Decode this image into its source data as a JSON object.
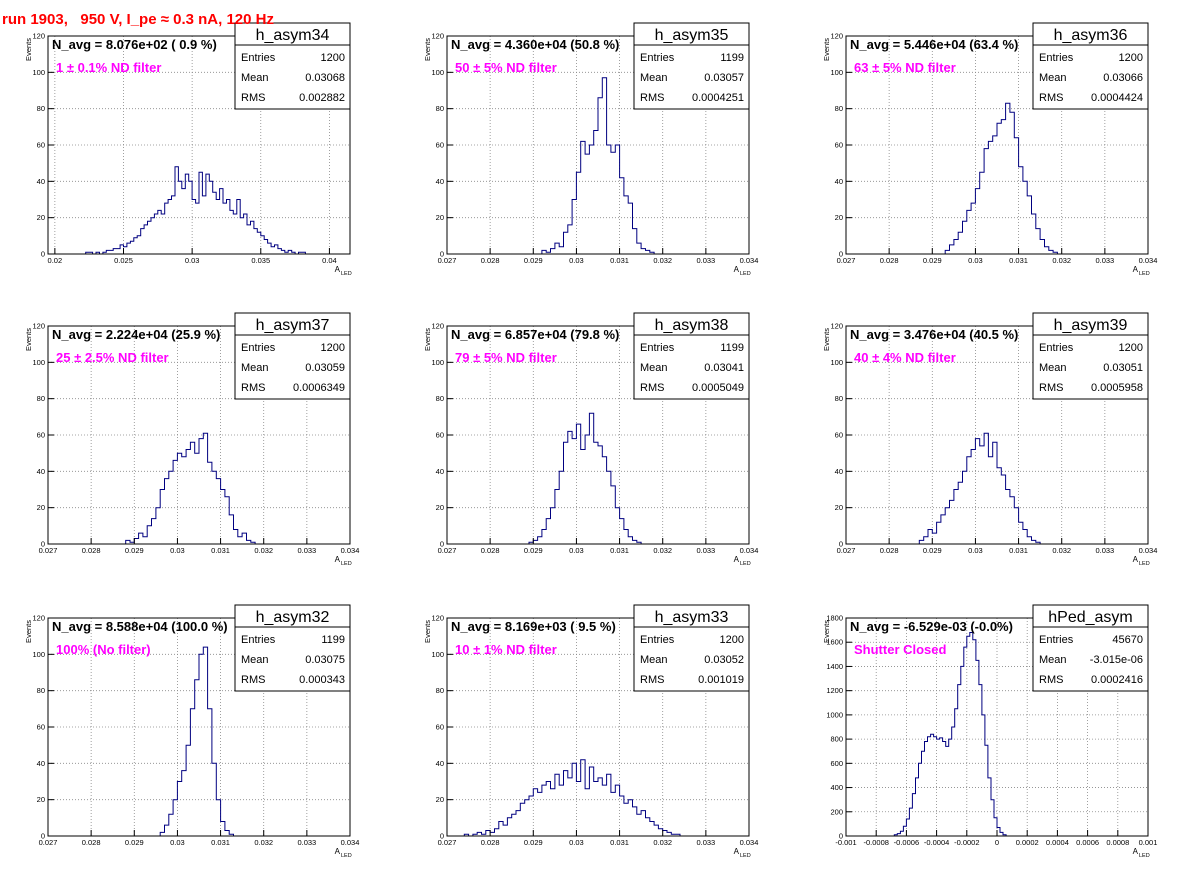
{
  "page_title": "run 1903,   950 V, I_pe ≈ 0.3 nA, 120 Hz",
  "colors": {
    "histogram": "#000080",
    "annotation": "#ff00ff",
    "title": "#ff0000",
    "grid": "#888888"
  },
  "stats_labels": {
    "entries": "Entries",
    "mean": "Mean",
    "rms": "RMS"
  },
  "chart_data": [
    {
      "type": "histogram",
      "name": "h_asym34",
      "navg_text": "N_avg = 8.076e+02 ( 0.9 %)",
      "annotation": "1 ± 0.1% ND filter",
      "stats": {
        "entries": "1200",
        "mean": "0.03068",
        "rms": "0.002882"
      },
      "ylabel": "Events",
      "xlabel": "A",
      "xlabel_sub": "LED",
      "xlim": [
        0.0195,
        0.0415
      ],
      "ylim": [
        0,
        120
      ],
      "xticks": [
        "0.02",
        "0.025",
        "0.03",
        "0.035",
        "0.04"
      ],
      "xtick_values": [
        0.02,
        0.025,
        0.03,
        0.035,
        0.04
      ],
      "yticks": [
        "0",
        "20",
        "40",
        "60",
        "80",
        "100",
        "120"
      ],
      "grid": true,
      "bin_start": 0.022,
      "bin_width": 0.00025,
      "counts": [
        0,
        1,
        1,
        0,
        1,
        0,
        1,
        2,
        2,
        3,
        3,
        5,
        4,
        6,
        7,
        9,
        10,
        14,
        16,
        18,
        20,
        22,
        24,
        22,
        28,
        30,
        32,
        48,
        40,
        36,
        44,
        40,
        30,
        28,
        45,
        32,
        44,
        40,
        34,
        30,
        36,
        28,
        30,
        24,
        22,
        30,
        20,
        22,
        16,
        18,
        14,
        12,
        10,
        8,
        6,
        4,
        5,
        3,
        2,
        1,
        2,
        1,
        0,
        1,
        1,
        0,
        0,
        0,
        0,
        0,
        0,
        0
      ]
    },
    {
      "type": "histogram",
      "name": "h_asym35",
      "navg_text": "N_avg = 4.360e+04 (50.8 %)",
      "annotation": "50 ± 5% ND filter",
      "stats": {
        "entries": "1199",
        "mean": "0.03057",
        "rms": "0.0004251"
      },
      "ylabel": "Events",
      "xlabel": "A",
      "xlabel_sub": "LED",
      "xlim": [
        0.027,
        0.034
      ],
      "ylim": [
        0,
        120
      ],
      "xticks": [
        "0.027",
        "0.028",
        "0.029",
        "0.03",
        "0.031",
        "0.032",
        "0.033",
        "0.034"
      ],
      "xtick_values": [
        0.027,
        0.028,
        0.029,
        0.03,
        0.031,
        0.032,
        0.033,
        0.034
      ],
      "yticks": [
        "0",
        "20",
        "40",
        "60",
        "80",
        "100",
        "120"
      ],
      "grid": true,
      "bin_start": 0.0292,
      "bin_width": 0.0001,
      "counts": [
        2,
        1,
        3,
        6,
        4,
        12,
        16,
        30,
        45,
        62,
        55,
        60,
        68,
        86,
        97,
        60,
        56,
        60,
        42,
        32,
        28,
        14,
        6,
        3,
        2,
        1,
        0
      ]
    },
    {
      "type": "histogram",
      "name": "h_asym36",
      "navg_text": "N_avg = 5.446e+04 (63.4 %)",
      "annotation": "63 ± 5% ND filter",
      "stats": {
        "entries": "1200",
        "mean": "0.03066",
        "rms": "0.0004424"
      },
      "ylabel": "Events",
      "xlabel": "A",
      "xlabel_sub": "LED",
      "xlim": [
        0.027,
        0.034
      ],
      "ylim": [
        0,
        120
      ],
      "xticks": [
        "0.027",
        "0.028",
        "0.029",
        "0.03",
        "0.031",
        "0.032",
        "0.033",
        "0.034"
      ],
      "xtick_values": [
        0.027,
        0.028,
        0.029,
        0.03,
        0.031,
        0.032,
        0.033,
        0.034
      ],
      "yticks": [
        "0",
        "20",
        "40",
        "60",
        "80",
        "100",
        "120"
      ],
      "grid": true,
      "bin_start": 0.0293,
      "bin_width": 0.0001,
      "counts": [
        2,
        5,
        8,
        12,
        18,
        24,
        28,
        36,
        45,
        58,
        62,
        65,
        72,
        74,
        83,
        78,
        64,
        48,
        40,
        32,
        22,
        14,
        8,
        4,
        2,
        1
      ]
    },
    {
      "type": "histogram",
      "name": "h_asym37",
      "navg_text": "N_avg = 2.224e+04 (25.9 %)",
      "annotation": "25 ± 2.5% ND filter",
      "stats": {
        "entries": "1200",
        "mean": "0.03059",
        "rms": "0.0006349"
      },
      "ylabel": "Events",
      "xlabel": "A",
      "xlabel_sub": "LED",
      "xlim": [
        0.027,
        0.034
      ],
      "ylim": [
        0,
        120
      ],
      "xticks": [
        "0.027",
        "0.028",
        "0.029",
        "0.03",
        "0.031",
        "0.032",
        "0.033",
        "0.034"
      ],
      "xtick_values": [
        0.027,
        0.028,
        0.029,
        0.03,
        0.031,
        0.032,
        0.033,
        0.034
      ],
      "yticks": [
        "0",
        "20",
        "40",
        "60",
        "80",
        "100",
        "120"
      ],
      "grid": true,
      "bin_start": 0.0288,
      "bin_width": 0.0001,
      "counts": [
        2,
        1,
        3,
        6,
        4,
        10,
        14,
        20,
        30,
        36,
        40,
        46,
        50,
        48,
        52,
        56,
        50,
        58,
        61,
        45,
        40,
        36,
        30,
        26,
        16,
        8,
        4,
        6,
        2,
        1
      ]
    },
    {
      "type": "histogram",
      "name": "h_asym38",
      "navg_text": "N_avg = 6.857e+04 (79.8 %)",
      "annotation": "79 ± 5% ND filter",
      "stats": {
        "entries": "1199",
        "mean": "0.03041",
        "rms": "0.0005049"
      },
      "ylabel": "Events",
      "xlabel": "A",
      "xlabel_sub": "LED",
      "xlim": [
        0.027,
        0.034
      ],
      "ylim": [
        0,
        120
      ],
      "xticks": [
        "0.027",
        "0.028",
        "0.029",
        "0.03",
        "0.031",
        "0.032",
        "0.033",
        "0.034"
      ],
      "xtick_values": [
        0.027,
        0.028,
        0.029,
        0.03,
        0.031,
        0.032,
        0.033,
        0.034
      ],
      "yticks": [
        "0",
        "20",
        "40",
        "60",
        "80",
        "100",
        "120"
      ],
      "grid": true,
      "bin_start": 0.0289,
      "bin_width": 0.0001,
      "counts": [
        1,
        2,
        4,
        8,
        14,
        20,
        30,
        40,
        56,
        62,
        58,
        66,
        52,
        60,
        72,
        56,
        54,
        48,
        40,
        32,
        20,
        14,
        8,
        4,
        2,
        1
      ]
    },
    {
      "type": "histogram",
      "name": "h_asym39",
      "navg_text": "N_avg = 3.476e+04 (40.5 %)",
      "annotation": "40 ± 4% ND filter",
      "stats": {
        "entries": "1200",
        "mean": "0.03051",
        "rms": "0.0005958"
      },
      "ylabel": "Events",
      "xlabel": "A",
      "xlabel_sub": "LED",
      "xlim": [
        0.027,
        0.034
      ],
      "ylim": [
        0,
        120
      ],
      "xticks": [
        "0.027",
        "0.028",
        "0.029",
        "0.03",
        "0.031",
        "0.032",
        "0.033",
        "0.034"
      ],
      "xtick_values": [
        0.027,
        0.028,
        0.029,
        0.03,
        0.031,
        0.032,
        0.033,
        0.034
      ],
      "yticks": [
        "0",
        "20",
        "40",
        "60",
        "80",
        "100",
        "120"
      ],
      "grid": true,
      "bin_start": 0.0287,
      "bin_width": 0.0001,
      "counts": [
        2,
        4,
        8,
        6,
        12,
        16,
        20,
        24,
        30,
        34,
        40,
        48,
        52,
        58,
        54,
        61,
        48,
        56,
        42,
        38,
        30,
        26,
        20,
        12,
        8,
        4,
        2,
        1
      ]
    },
    {
      "type": "histogram",
      "name": "h_asym32",
      "navg_text": "N_avg = 8.588e+04 (100.0 %)",
      "annotation": "100% (No filter)",
      "stats": {
        "entries": "1199",
        "mean": "0.03075",
        "rms": "0.000343"
      },
      "ylabel": "Events",
      "xlabel": "A",
      "xlabel_sub": "LED",
      "xlim": [
        0.027,
        0.034
      ],
      "ylim": [
        0,
        120
      ],
      "xticks": [
        "0.027",
        "0.028",
        "0.029",
        "0.03",
        "0.031",
        "0.032",
        "0.033",
        "0.034"
      ],
      "xtick_values": [
        0.027,
        0.028,
        0.029,
        0.03,
        0.031,
        0.032,
        0.033,
        0.034
      ],
      "yticks": [
        "0",
        "20",
        "40",
        "60",
        "80",
        "100",
        "120"
      ],
      "grid": true,
      "bin_start": 0.0296,
      "bin_width": 0.0001,
      "counts": [
        2,
        6,
        12,
        20,
        30,
        36,
        50,
        70,
        86,
        100,
        104,
        70,
        40,
        20,
        8,
        3,
        1
      ]
    },
    {
      "type": "histogram",
      "name": "h_asym33",
      "navg_text": "N_avg = 8.169e+03 ( 9.5 %)",
      "annotation": "10 ± 1% ND filter",
      "stats": {
        "entries": "1200",
        "mean": "0.03052",
        "rms": "0.001019"
      },
      "ylabel": "Events",
      "xlabel": "A",
      "xlabel_sub": "LED",
      "xlim": [
        0.027,
        0.034
      ],
      "ylim": [
        0,
        120
      ],
      "xticks": [
        "0.027",
        "0.028",
        "0.029",
        "0.03",
        "0.031",
        "0.032",
        "0.033",
        "0.034"
      ],
      "xtick_values": [
        0.027,
        0.028,
        0.029,
        0.03,
        0.031,
        0.032,
        0.033,
        0.034
      ],
      "yticks": [
        "0",
        "20",
        "40",
        "60",
        "80",
        "100",
        "120"
      ],
      "grid": true,
      "bin_start": 0.0274,
      "bin_width": 0.0001,
      "counts": [
        1,
        0,
        1,
        2,
        1,
        3,
        2,
        4,
        8,
        6,
        10,
        12,
        14,
        18,
        20,
        22,
        26,
        24,
        28,
        30,
        26,
        34,
        28,
        36,
        32,
        40,
        30,
        42,
        26,
        38,
        30,
        32,
        28,
        34,
        24,
        28,
        22,
        18,
        20,
        16,
        12,
        14,
        10,
        8,
        6,
        4,
        3,
        2,
        1,
        1
      ]
    },
    {
      "type": "histogram",
      "name": "hPed_asym",
      "navg_text": "N_avg = -6.529e-03 (-0.0%)",
      "annotation": "Shutter Closed",
      "stats": {
        "entries": "45670",
        "mean": "-3.015e-06",
        "rms": "0.0002416"
      },
      "ylabel": "Events",
      "xlabel": "A",
      "xlabel_sub": "LED",
      "xlim": [
        -0.001,
        0.001
      ],
      "ylim": [
        0,
        1800
      ],
      "xticks": [
        "-0.001",
        "-0.0008",
        "-0.0006",
        "-0.0004",
        "-0.0002",
        "0",
        "0.0002",
        "0.0004",
        "0.0006",
        "0.0008",
        "0.001"
      ],
      "xtick_values": [
        -0.001,
        -0.0008,
        -0.0006,
        -0.0004,
        -0.0002,
        0,
        0.0002,
        0.0004,
        0.0006,
        0.0008,
        0.001
      ],
      "yticks": [
        "0",
        "200",
        "400",
        "600",
        "800",
        "1000",
        "1200",
        "1400",
        "1600",
        "1800"
      ],
      "grid": true,
      "bin_start": -0.00068,
      "bin_width": 2e-05,
      "counts": [
        10,
        20,
        40,
        80,
        140,
        230,
        350,
        480,
        600,
        700,
        780,
        820,
        840,
        820,
        800,
        810,
        780,
        740,
        800,
        900,
        1050,
        1250,
        1400,
        1560,
        1650,
        1680,
        1620,
        1450,
        1250,
        1000,
        750,
        480,
        300,
        150,
        70,
        30,
        10
      ]
    }
  ]
}
